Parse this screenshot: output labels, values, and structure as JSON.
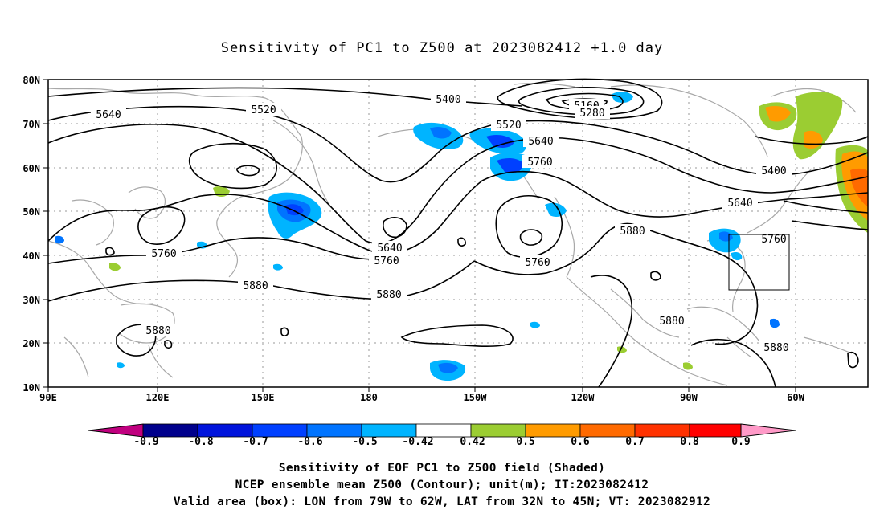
{
  "title": "Sensitivity of PC1 to Z500 at 2023082412 +1.0 day",
  "lat_labels": [
    "80N",
    "70N",
    "60N",
    "50N",
    "40N",
    "30N",
    "20N",
    "10N"
  ],
  "lon_labels": [
    "90E",
    "120E",
    "150E",
    "180",
    "150W",
    "120W",
    "90W",
    "60W"
  ],
  "contour_labels": [
    "5400",
    "5160",
    "5280",
    "5520",
    "5640",
    "5640",
    "5760",
    "5520",
    "5400",
    "5640",
    "5760",
    "5880",
    "5640",
    "5760",
    "5880",
    "5760",
    "5880",
    "5880",
    "5880",
    "5760"
  ],
  "colorbar": {
    "ticks": [
      "-0.9",
      "-0.8",
      "-0.7",
      "-0.6",
      "-0.5",
      "-0.42",
      "0.42",
      "0.5",
      "0.6",
      "0.7",
      "0.8",
      "0.9"
    ],
    "colors": [
      "#c0007f",
      "#00008c",
      "#0014dc",
      "#0040ff",
      "#0074ff",
      "#00b4ff",
      "#ffffff",
      "#9bcd32",
      "#ff9b00",
      "#ff6a00",
      "#ff3200",
      "#ff0000",
      "#ff9ac8"
    ]
  },
  "footer": {
    "line1": "Sensitivity of EOF PC1 to Z500 field (Shaded)",
    "line2": "NCEP ensemble mean Z500 (Contour); unit(m); IT:2023082412",
    "line3": "Valid area (box): LON from 79W to 62W, LAT from 32N to 45N; VT: 2023082912"
  }
}
